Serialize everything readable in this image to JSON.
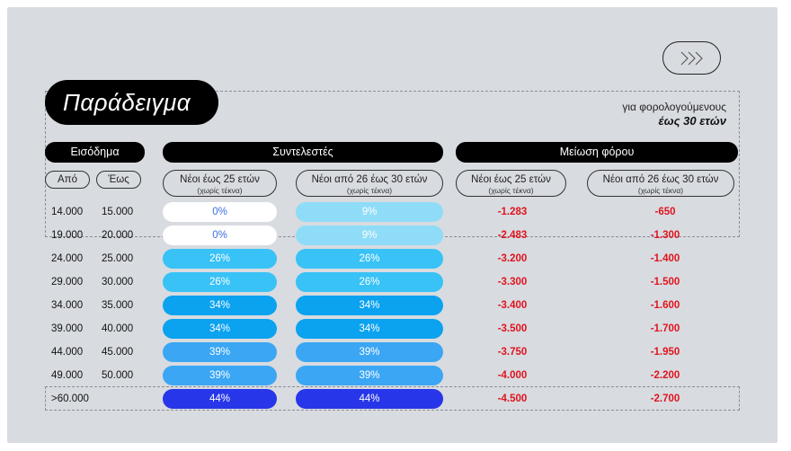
{
  "title": "Παράδειγμα",
  "subtitle": {
    "line1": "για φορολογούμενους",
    "line2": "έως 30 ετών"
  },
  "headers": {
    "income": "Εισόδημα",
    "rates": "Συντελεστές",
    "reduction": "Μείωση φόρου"
  },
  "income_cols": {
    "from": "Από",
    "to": "Έως"
  },
  "rate_cols": [
    {
      "main": "Νέοι έως 25 ετών",
      "note": "(χωρίς τέκνα)"
    },
    {
      "main": "Νέοι από 26 έως 30 ετών",
      "note": "(χωρίς τέκνα)"
    }
  ],
  "reduction_cols": [
    {
      "main": "Νέοι έως 25 ετών",
      "note": "(χωρίς τέκνα)"
    },
    {
      "main": "Νέοι από 26 έως 30 ετών",
      "note": "(χωρίς τέκνα)"
    }
  ],
  "colors": {
    "white": "#ffffff",
    "pale": "#8fdcf8",
    "light": "#38c2f6",
    "mid": "#0ba2f0",
    "sky": "#3aa6f4",
    "deep": "#2736e8",
    "red": "#e0141e"
  },
  "rows": [
    {
      "from": "14.000",
      "to": "15.000",
      "rate_a": "0%",
      "rate_b": "9%",
      "color_a": "white",
      "color_b": "pale",
      "red_a": "-1.283",
      "red_b": "-650"
    },
    {
      "from": "19.000",
      "to": "20.000",
      "rate_a": "0%",
      "rate_b": "9%",
      "color_a": "white",
      "color_b": "pale",
      "red_a": "-2.483",
      "red_b": "-1.300"
    },
    {
      "from": "24.000",
      "to": "25.000",
      "rate_a": "26%",
      "rate_b": "26%",
      "color_a": "light",
      "color_b": "light",
      "red_a": "-3.200",
      "red_b": "-1.400"
    },
    {
      "from": "29.000",
      "to": "30.000",
      "rate_a": "26%",
      "rate_b": "26%",
      "color_a": "light",
      "color_b": "light",
      "red_a": "-3.300",
      "red_b": "-1.500"
    },
    {
      "from": "34.000",
      "to": "35.000",
      "rate_a": "34%",
      "rate_b": "34%",
      "color_a": "mid",
      "color_b": "mid",
      "red_a": "-3.400",
      "red_b": "-1.600"
    },
    {
      "from": "39.000",
      "to": "40.000",
      "rate_a": "34%",
      "rate_b": "34%",
      "color_a": "mid",
      "color_b": "mid",
      "red_a": "-3.500",
      "red_b": "-1.700"
    },
    {
      "from": "44.000",
      "to": "45.000",
      "rate_a": "39%",
      "rate_b": "39%",
      "color_a": "sky",
      "color_b": "sky",
      "red_a": "-3.750",
      "red_b": "-1.950"
    },
    {
      "from": "49.000",
      "to": "50.000",
      "rate_a": "39%",
      "rate_b": "39%",
      "color_a": "sky",
      "color_b": "sky",
      "red_a": "-4.000",
      "red_b": "-2.200"
    },
    {
      "from": ">60.000",
      "to": "",
      "rate_a": "44%",
      "rate_b": "44%",
      "color_a": "deep",
      "color_b": "deep",
      "red_a": "-4.500",
      "red_b": "-2.700"
    }
  ]
}
